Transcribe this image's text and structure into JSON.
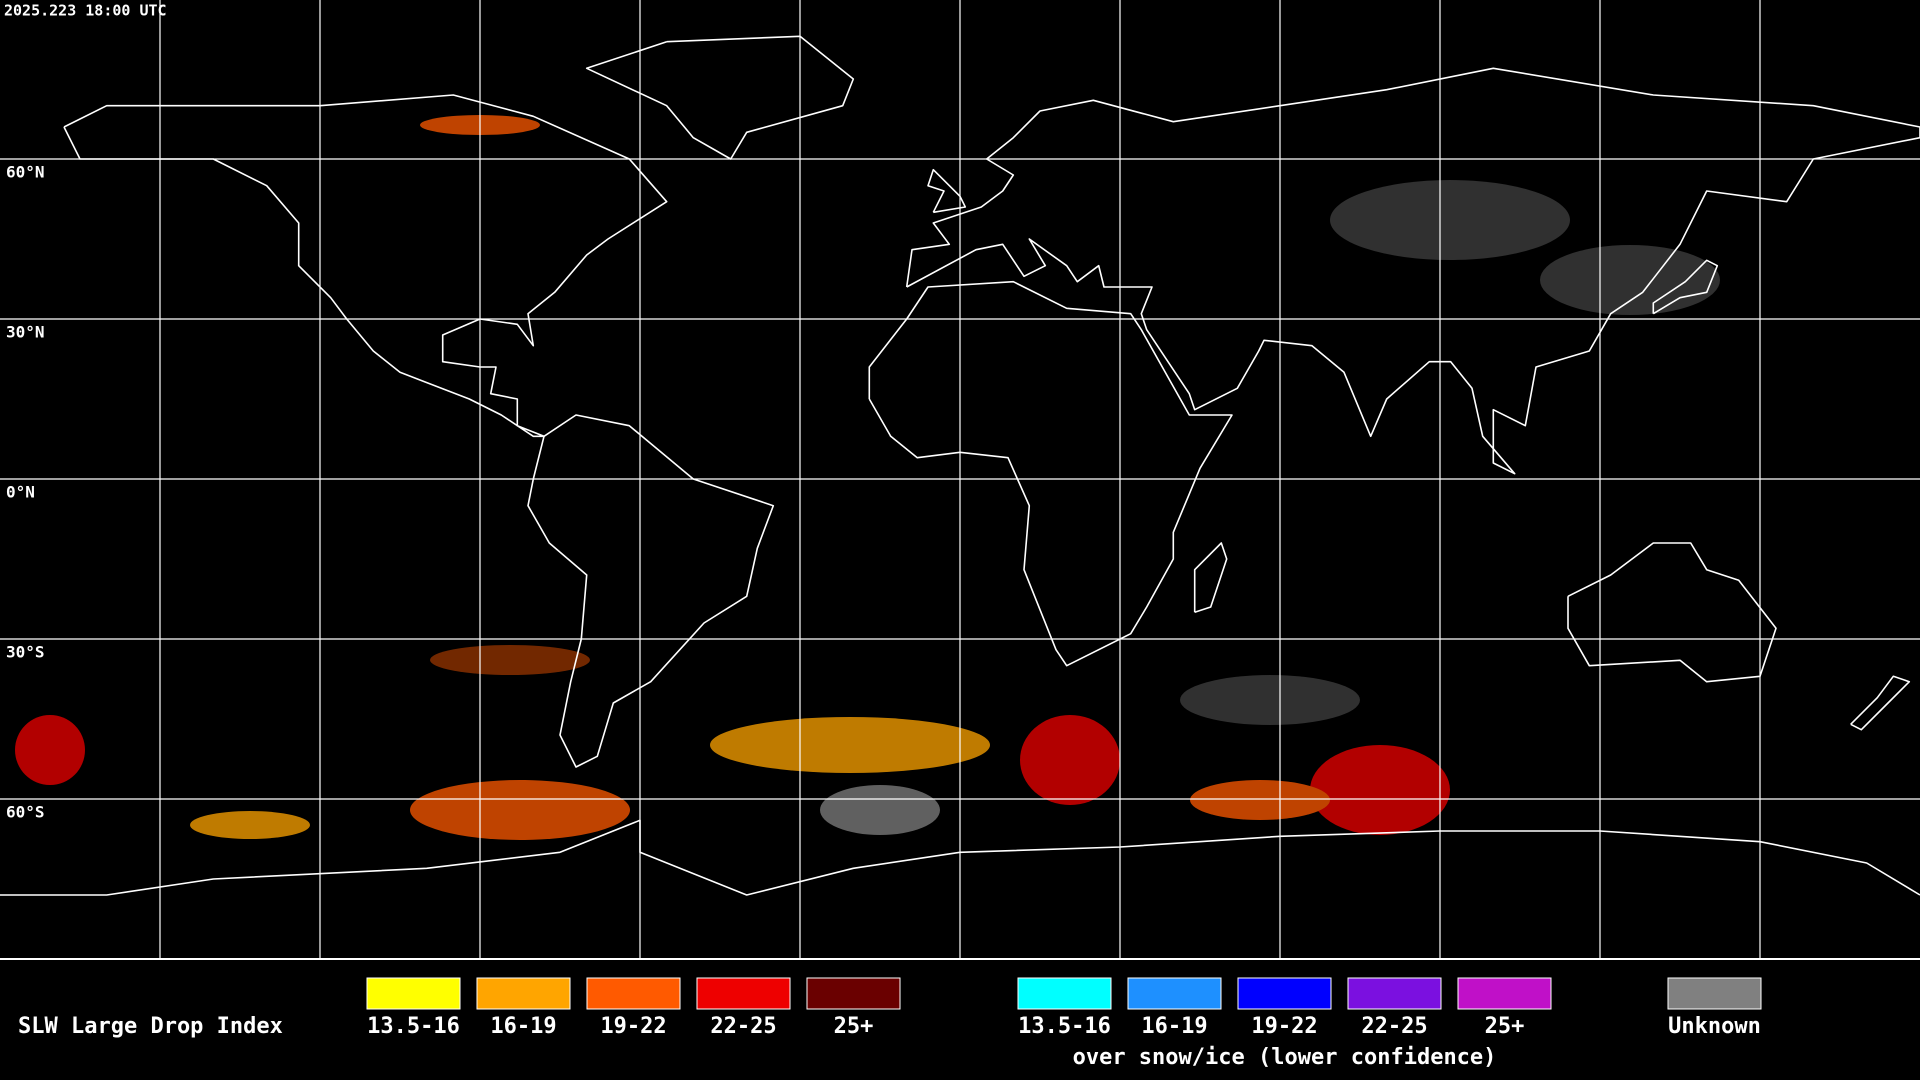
{
  "header": {
    "timestamp": "2025.223 18:00 UTC"
  },
  "map": {
    "latitude_labels": [
      "60°N",
      "30°N",
      "0°N",
      "30°S",
      "60°S"
    ]
  },
  "legend": {
    "title": "SLW Large Drop Index",
    "groups": [
      {
        "items": [
          {
            "label": "13.5-16",
            "color": "#ffff00"
          },
          {
            "label": "16-19",
            "color": "#ffa500"
          },
          {
            "label": "19-22",
            "color": "#ff5a00"
          },
          {
            "label": "22-25",
            "color": "#ee0000"
          },
          {
            "label": "25+",
            "color": "#6a0000"
          }
        ]
      },
      {
        "note": "over snow/ice (lower confidence)",
        "items": [
          {
            "label": "13.5-16",
            "color": "#00ffff"
          },
          {
            "label": "16-19",
            "color": "#1e90ff"
          },
          {
            "label": "19-22",
            "color": "#0000ff"
          },
          {
            "label": "22-25",
            "color": "#7b10e0"
          },
          {
            "label": "25+",
            "color": "#c010c8"
          }
        ]
      },
      {
        "items": [
          {
            "label": "Unknown",
            "color": "#808080"
          }
        ]
      }
    ]
  }
}
